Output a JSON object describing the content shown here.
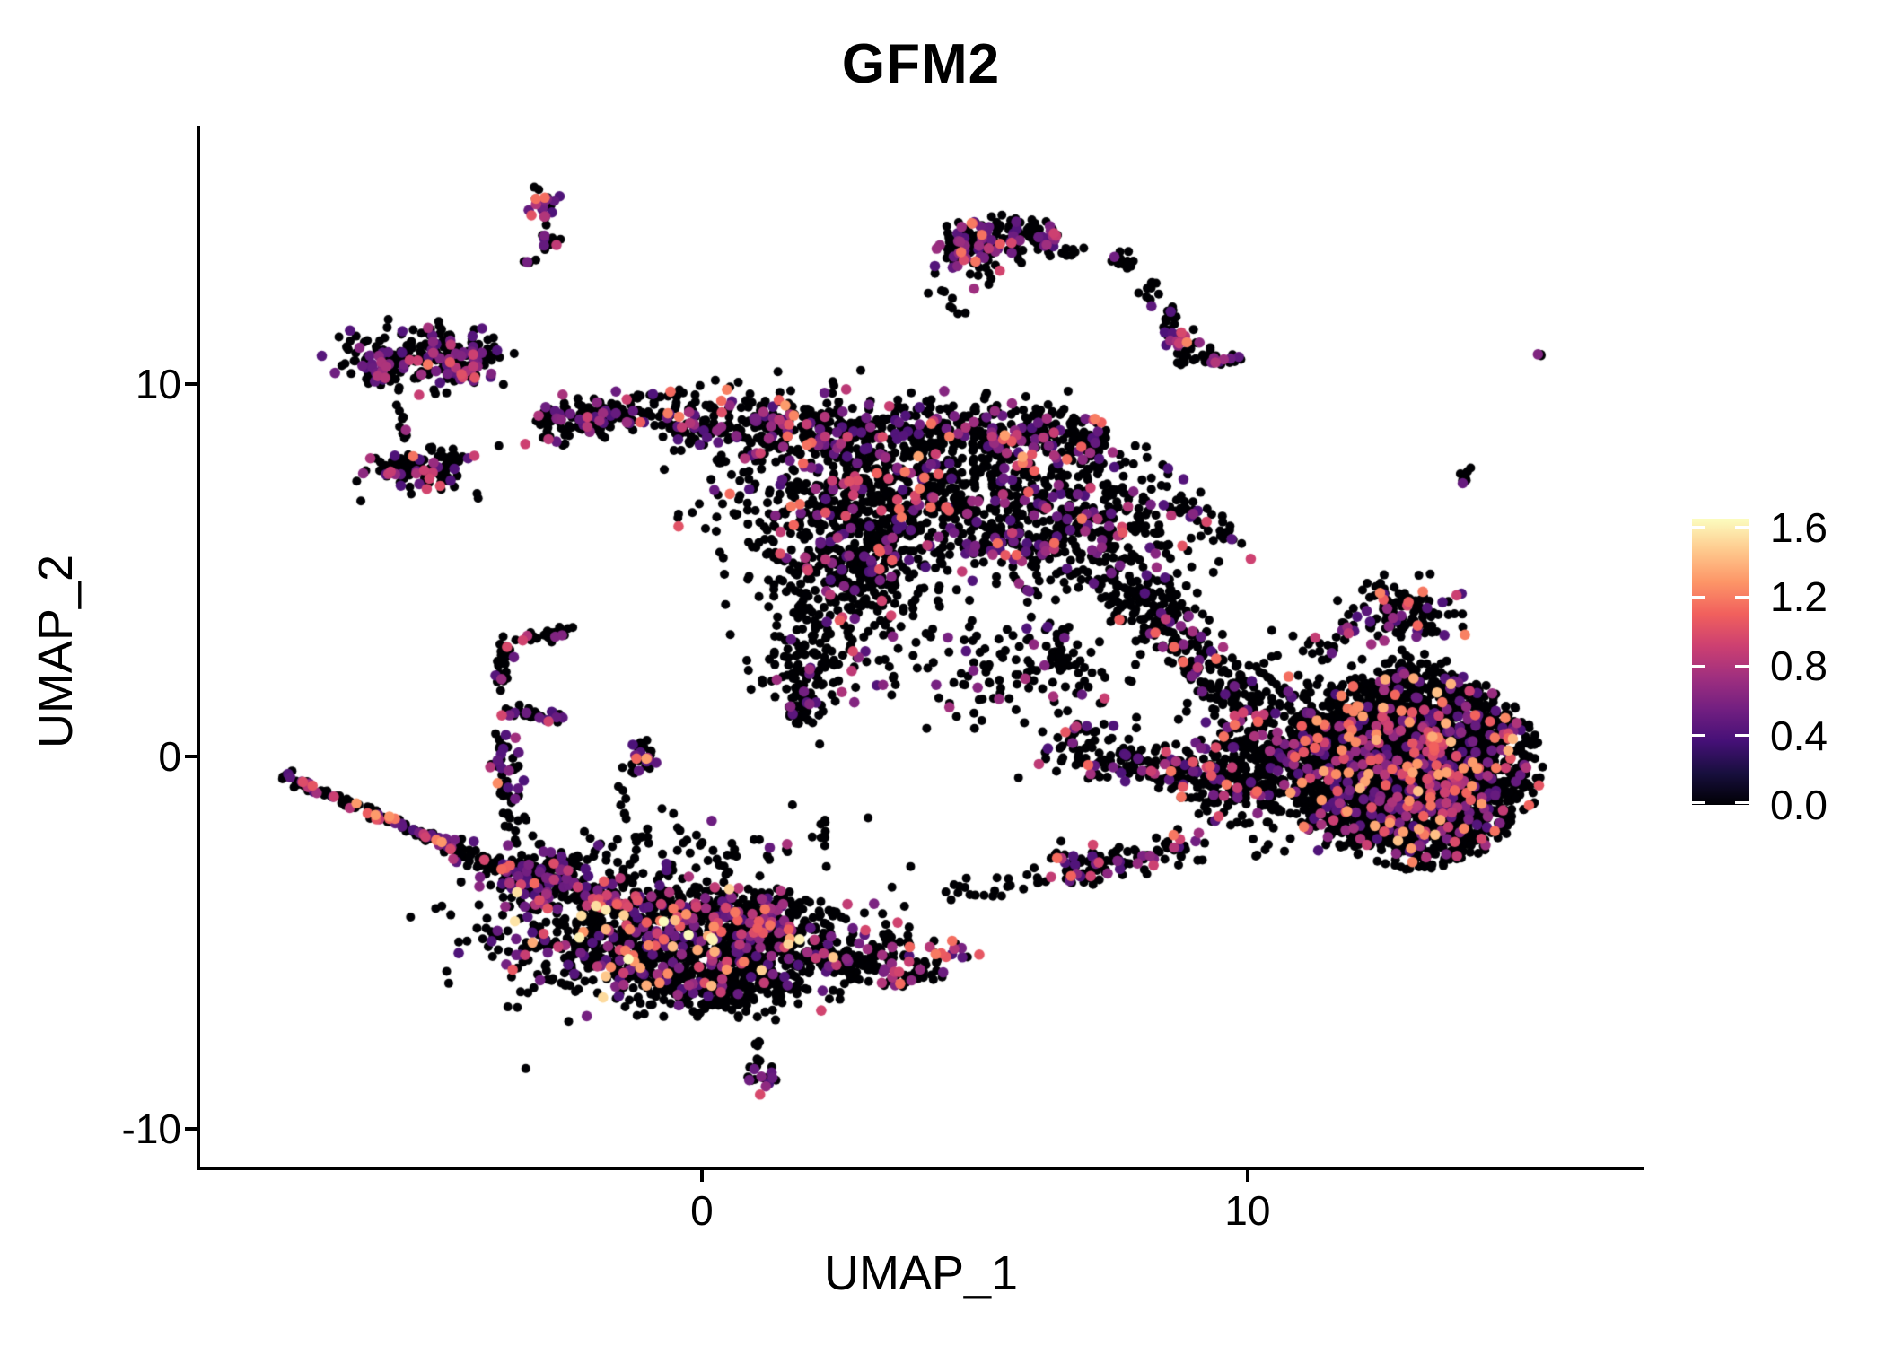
{
  "title": "GFM2",
  "axes": {
    "x": {
      "label": "UMAP_1",
      "ticks": [
        "0",
        "10"
      ]
    },
    "y": {
      "label": "UMAP_2",
      "ticks": [
        "10",
        "0",
        "-10"
      ]
    }
  },
  "legend": {
    "labels": [
      "1.6",
      "1.2",
      "0.8",
      "0.4",
      "0.0"
    ]
  },
  "colors": {
    "background": "#FFFFFF",
    "axis": "#000000",
    "point_low": "#000004",
    "point_mid_purple": "#721F81",
    "point_magenta": "#B63679",
    "point_orange": "#F1605D",
    "point_cream": "#FCFDBF",
    "magma_stops": [
      "#000004",
      "#180F3E",
      "#451077",
      "#721F81",
      "#9F2F7F",
      "#CD4071",
      "#F1605D",
      "#FD9567",
      "#FEC98D",
      "#FCFDBF"
    ]
  },
  "chart_data": {
    "type": "scatter",
    "title": "GFM2",
    "xlabel": "UMAP_1",
    "ylabel": "UMAP_2",
    "xlim": [
      -9.21,
      17.24
    ],
    "ylim": [
      -11.06,
      16.89
    ],
    "x_ticks": [
      0,
      10
    ],
    "y_ticks": [
      10,
      0,
      -10
    ],
    "grid": false,
    "legend_position": "right",
    "colorbar": {
      "limits": [
        0,
        1.65
      ],
      "ticks": [
        1.6,
        1.2,
        0.8,
        0.4,
        0.0
      ],
      "colormap": "magma"
    },
    "clusters": [
      {
        "shape": "blob",
        "x": -2.928,
        "y": 14.819,
        "sx": 0.18,
        "sy": 0.22,
        "n": 22,
        "frac": 0.55,
        "vmax": 1.45
      },
      {
        "shape": "blob",
        "x": -2.813,
        "y": 13.952,
        "sx": 0.12,
        "sy": 0.2,
        "n": 12,
        "frac": 0.25,
        "vmax": 1.0
      },
      {
        "shape": "blob",
        "x": -3.125,
        "y": 13.301,
        "sx": 0.07,
        "sy": 0.07,
        "n": 4,
        "frac": 0.1,
        "vmax": 0.8
      },
      {
        "shape": "blob",
        "x": 4.984,
        "y": 13.639,
        "sx": 0.38,
        "sy": 0.4,
        "n": 130,
        "frac": 0.3,
        "vmax": 1.2
      },
      {
        "shape": "blob",
        "x": 5.922,
        "y": 13.928,
        "sx": 0.33,
        "sy": 0.25,
        "n": 70,
        "frac": 0.25,
        "vmax": 1.1
      },
      {
        "shape": "line",
        "x": 6.218,
        "y": 13.855,
        "x2": 7.665,
        "y2": 13.325,
        "jx": 0.1,
        "jy": 0.12,
        "n": 14,
        "frac": 0.3,
        "vmax": 1.0
      },
      {
        "shape": "line",
        "x": 4.375,
        "y": 12.554,
        "x2": 4.704,
        "y2": 11.831,
        "jx": 0.1,
        "jy": 0.1,
        "n": 8,
        "frac": 0.1,
        "vmax": 0.8
      },
      {
        "shape": "blob",
        "x": 7.83,
        "y": 13.277,
        "sx": 0.15,
        "sy": 0.13,
        "n": 14,
        "frac": 0.15,
        "vmax": 0.9
      },
      {
        "shape": "blob",
        "x": 8.192,
        "y": 12.482,
        "sx": 0.1,
        "sy": 0.15,
        "n": 10,
        "frac": 0.1,
        "vmax": 0.8
      },
      {
        "shape": "blob",
        "x": 8.521,
        "y": 11.831,
        "sx": 0.12,
        "sy": 0.17,
        "n": 12,
        "frac": 0.15,
        "vmax": 0.9
      },
      {
        "shape": "blob",
        "x": 8.718,
        "y": 11.205,
        "sx": 0.2,
        "sy": 0.22,
        "n": 26,
        "frac": 0.35,
        "vmax": 1.0
      },
      {
        "shape": "blob",
        "x": 8.85,
        "y": 10.675,
        "sx": 0.08,
        "sy": 0.12,
        "n": 6,
        "frac": 0.0,
        "vmax": 0.8
      },
      {
        "shape": "blob",
        "x": 9.212,
        "y": 10.723,
        "sx": 0.2,
        "sy": 0.16,
        "n": 16,
        "frac": 0.3,
        "vmax": 1.25
      },
      {
        "shape": "blob",
        "x": 9.705,
        "y": 10.675,
        "sx": 0.13,
        "sy": 0.1,
        "n": 8,
        "frac": 0.3,
        "vmax": 0.9
      },
      {
        "shape": "blob",
        "x": -5.132,
        "y": 10.795,
        "sx": 0.72,
        "sy": 0.4,
        "n": 180,
        "frac": 0.22,
        "vmax": 1.25
      },
      {
        "shape": "blob",
        "x": -5.889,
        "y": 10.289,
        "sx": 0.16,
        "sy": 0.16,
        "n": 20,
        "frac": 0.3,
        "vmax": 1.0
      },
      {
        "shape": "blob",
        "x": -4.376,
        "y": 10.578,
        "sx": 0.28,
        "sy": 0.28,
        "n": 70,
        "frac": 0.25,
        "vmax": 1.1
      },
      {
        "shape": "line",
        "x": -5.576,
        "y": 9.783,
        "x2": -5.444,
        "y2": 8.458,
        "jx": 0.07,
        "jy": 0.07,
        "n": 9,
        "frac": 0.1,
        "vmax": 0.8
      },
      {
        "shape": "blob",
        "x": -5.165,
        "y": 7.711,
        "sx": 0.5,
        "sy": 0.3,
        "n": 120,
        "frac": 0.2,
        "vmax": 1.2
      },
      {
        "shape": "blob",
        "x": -5.757,
        "y": 7.759,
        "sx": 0.1,
        "sy": 0.12,
        "n": 10,
        "frac": 0.15,
        "vmax": 0.9
      },
      {
        "shape": "line",
        "x": -3.026,
        "y": 8.892,
        "x2": -0.658,
        "y2": 9.422,
        "jx": 0.12,
        "jy": 0.28,
        "n": 150,
        "frac": 0.2,
        "vmax": 1.2
      },
      {
        "shape": "line",
        "x": -0.658,
        "y": 8.94,
        "x2": 7.402,
        "y2": 8.41,
        "jx": 0.15,
        "jy": 0.5,
        "n": 780,
        "frac": 0.22,
        "vmax": 1.35
      },
      {
        "shape": "blob",
        "x": 3.29,
        "y": 6.819,
        "sx": 1.55,
        "sy": 0.72,
        "n": 560,
        "frac": 0.18,
        "vmax": 1.2
      },
      {
        "shape": "blob",
        "x": 2.796,
        "y": 4.843,
        "sx": 0.8,
        "sy": 0.8,
        "n": 300,
        "frac": 0.12,
        "vmax": 1.1
      },
      {
        "shape": "blob",
        "x": 2.04,
        "y": 2.554,
        "sx": 0.5,
        "sy": 0.7,
        "n": 130,
        "frac": 0.12,
        "vmax": 1.0
      },
      {
        "shape": "blob",
        "x": 1.793,
        "y": 1.229,
        "sx": 0.18,
        "sy": 0.25,
        "n": 30,
        "frac": 0.1,
        "vmax": 0.9
      },
      {
        "shape": "blob",
        "x": 6.711,
        "y": 6.048,
        "sx": 1.25,
        "sy": 0.85,
        "n": 430,
        "frac": 0.18,
        "vmax": 1.2
      },
      {
        "shape": "line",
        "x": 7.731,
        "y": 4.843,
        "x2": 10.034,
        "y2": 1.229,
        "jx": 0.4,
        "jy": 0.3,
        "n": 270,
        "frac": 0.15,
        "vmax": 1.2
      },
      {
        "shape": "line",
        "x": 6.086,
        "y": 3.398,
        "x2": 7.402,
        "y2": 0.747,
        "jx": 0.35,
        "jy": 0.35,
        "n": 60,
        "frac": 0.08,
        "vmax": 1.0
      },
      {
        "shape": "blob",
        "x": 5.363,
        "y": 2.289,
        "sx": 1.1,
        "sy": 0.9,
        "n": 90,
        "frac": 0.05,
        "vmax": 0.9
      },
      {
        "shape": "line",
        "x": 6.579,
        "y": 0.265,
        "x2": 10.034,
        "y2": -0.94,
        "jx": 0.3,
        "jy": 0.3,
        "n": 210,
        "frac": 0.15,
        "vmax": 1.2
      },
      {
        "shape": "line",
        "x": 2.204,
        "y": -1.518,
        "x2": 2.204,
        "y2": -2.964,
        "jx": 0.05,
        "jy": 0.1,
        "n": 8,
        "frac": 0.1,
        "vmax": 0.8
      },
      {
        "shape": "line",
        "x": -1.48,
        "y": -0.699,
        "x2": -1.398,
        "y2": -2.337,
        "jx": 0.05,
        "jy": 0.1,
        "n": 7,
        "frac": 0.1,
        "vmax": 0.8
      },
      {
        "shape": "line",
        "x": -1.349,
        "y": -2.145,
        "x2": -0.724,
        "y2": -2.193,
        "jx": 0.04,
        "jy": 0.04,
        "n": 5,
        "frac": 0.0,
        "vmax": 0.8
      },
      {
        "shape": "blob",
        "x": -1.184,
        "y": -0.072,
        "sx": 0.2,
        "sy": 0.26,
        "n": 26,
        "frac": 0.4,
        "vmax": 1.35
      },
      {
        "shape": "line",
        "x": -2.336,
        "y": 3.373,
        "x2": -3.421,
        "y2": 3.133,
        "jx": 0.09,
        "jy": 0.09,
        "n": 30,
        "frac": 0.25,
        "vmax": 1.0
      },
      {
        "shape": "line",
        "x": -3.586,
        "y": 3.036,
        "x2": -3.718,
        "y2": 1.855,
        "jx": 0.08,
        "jy": 0.08,
        "n": 25,
        "frac": 0.2,
        "vmax": 1.0
      },
      {
        "shape": "line",
        "x": -3.685,
        "y": 1.253,
        "x2": -2.566,
        "y2": 1.012,
        "jx": 0.08,
        "jy": 0.08,
        "n": 30,
        "frac": 0.25,
        "vmax": 1.0
      },
      {
        "shape": "line",
        "x": -3.652,
        "y": 0.506,
        "x2": -3.388,
        "y2": -2.241,
        "jx": 0.12,
        "jy": 0.12,
        "n": 55,
        "frac": 0.3,
        "vmax": 1.3
      },
      {
        "shape": "line",
        "x": -7.698,
        "y": -0.482,
        "x2": -4.425,
        "y2": -2.554,
        "jx": 0.07,
        "jy": 0.07,
        "n": 115,
        "frac": 0.32,
        "vmax": 1.35
      },
      {
        "shape": "line",
        "x": -4.425,
        "y": -2.554,
        "x2": -2.977,
        "y2": -3.566,
        "jx": 0.16,
        "jy": 0.16,
        "n": 95,
        "frac": 0.25,
        "vmax": 1.25
      },
      {
        "shape": "blob",
        "x": -2.813,
        "y": -3.205,
        "sx": 0.45,
        "sy": 0.45,
        "n": 150,
        "frac": 0.2,
        "vmax": 1.2
      },
      {
        "shape": "blob",
        "x": -0.658,
        "y": -4.892,
        "sx": 1.55,
        "sy": 0.78,
        "n": 950,
        "frac": 0.2,
        "vmax": 1.65
      },
      {
        "shape": "blob",
        "x": 1.48,
        "y": -5.229,
        "sx": 0.85,
        "sy": 0.55,
        "n": 270,
        "frac": 0.12,
        "vmax": 1.1
      },
      {
        "shape": "line",
        "x": -2.303,
        "y": -3.831,
        "x2": 1.908,
        "y2": -4.313,
        "jx": 0.25,
        "jy": 0.25,
        "n": 190,
        "frac": 0.28,
        "vmax": 1.35
      },
      {
        "shape": "blob",
        "x": 0.329,
        "y": -6.241,
        "sx": 0.75,
        "sy": 0.32,
        "n": 150,
        "frac": 0.1,
        "vmax": 1.0
      },
      {
        "shape": "line",
        "x": 1.974,
        "y": -5.373,
        "x2": 2.895,
        "y2": -5.518,
        "jx": 0.12,
        "jy": 0.12,
        "n": 30,
        "frac": 0.1,
        "vmax": 0.9
      },
      {
        "shape": "blob",
        "x": 3.619,
        "y": -5.518,
        "sx": 0.6,
        "sy": 0.33,
        "n": 115,
        "frac": 0.3,
        "vmax": 1.3
      },
      {
        "shape": "blob",
        "x": -0.329,
        "y": -2.627,
        "sx": 1.1,
        "sy": 0.55,
        "n": 65,
        "frac": 0.1,
        "vmax": 1.0
      },
      {
        "shape": "line",
        "x": 1.003,
        "y": -7.542,
        "x2": 1.003,
        "y2": -8.265,
        "jx": 0.04,
        "jy": 0.08,
        "n": 6,
        "frac": 0.1,
        "vmax": 0.8
      },
      {
        "shape": "blob",
        "x": 1.053,
        "y": -8.651,
        "sx": 0.16,
        "sy": 0.2,
        "n": 18,
        "frac": 0.4,
        "vmax": 1.3
      },
      {
        "shape": "blob",
        "x": 14.015,
        "y": 7.518,
        "sx": 0.11,
        "sy": 0.11,
        "n": 9,
        "frac": 0.15,
        "vmax": 0.9
      },
      {
        "shape": "blob",
        "x": 12.896,
        "y": 3.904,
        "sx": 0.5,
        "sy": 0.45,
        "n": 115,
        "frac": 0.2,
        "vmax": 1.25
      },
      {
        "shape": "line",
        "x": 12.008,
        "y": 3.639,
        "x2": 11.12,
        "y2": 2.627,
        "jx": 0.18,
        "jy": 0.18,
        "n": 25,
        "frac": 0.1,
        "vmax": 0.9
      },
      {
        "shape": "blob",
        "x": 12.995,
        "y": -0.313,
        "sx": 1.15,
        "sy": 1.3,
        "n": 2900,
        "frac": 0.13,
        "vmax": 1.45,
        "clip": 2.1
      },
      {
        "shape": "blob",
        "x": 10.923,
        "y": 0.265,
        "sx": 0.75,
        "sy": 1.05,
        "n": 400,
        "frac": 0.13,
        "vmax": 1.3
      },
      {
        "shape": "blob",
        "x": 9.87,
        "y": -0.458,
        "sx": 0.55,
        "sy": 0.95,
        "n": 130,
        "frac": 0.1,
        "vmax": 1.1
      },
      {
        "shape": "line",
        "x": 9.08,
        "y": -2.241,
        "x2": 7.402,
        "y2": -3.012,
        "jx": 0.22,
        "jy": 0.22,
        "n": 60,
        "frac": 0.2,
        "vmax": 1.2
      },
      {
        "shape": "blob",
        "x": 6.974,
        "y": -2.964,
        "sx": 0.33,
        "sy": 0.24,
        "n": 58,
        "frac": 0.3,
        "vmax": 1.3
      },
      {
        "shape": "line",
        "x": 4.442,
        "y": -3.783,
        "x2": 6.579,
        "y2": -3.205,
        "jx": 0.15,
        "jy": 0.15,
        "n": 25,
        "frac": 0.1,
        "vmax": 0.9
      },
      {
        "shape": "blob",
        "x": 12.83,
        "y": 2.337,
        "sx": 0.45,
        "sy": 0.28,
        "n": 40,
        "frac": 0.1,
        "vmax": 1.0
      },
      {
        "shape": "blob",
        "x": 15.364,
        "y": 10.771,
        "sx": 0.05,
        "sy": 0.06,
        "n": 3,
        "frac": 0.3,
        "vmax": 0.8
      },
      {
        "shape": "line",
        "x": 7.665,
        "y": 8.361,
        "x2": 9.902,
        "y2": 5.373,
        "jx": 0.22,
        "jy": 0.22,
        "n": 40,
        "frac": 0.15,
        "vmax": 1.0
      }
    ]
  }
}
